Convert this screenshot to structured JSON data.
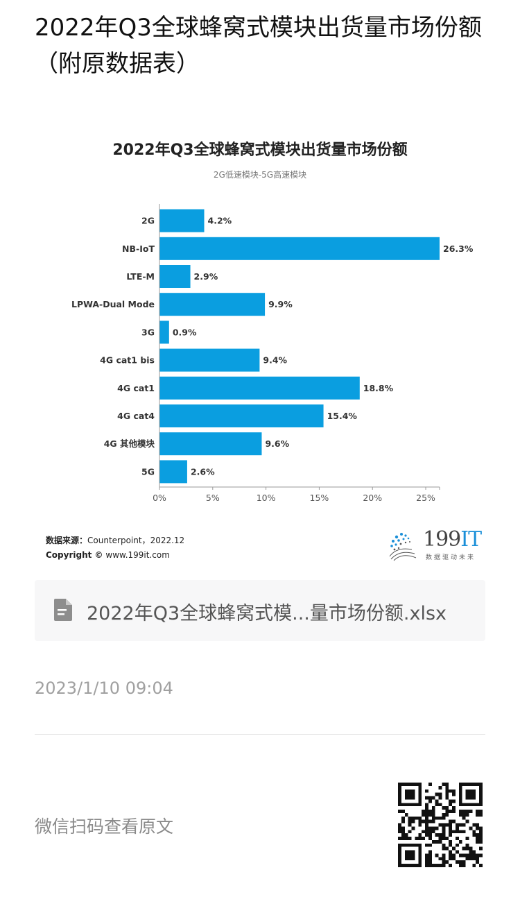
{
  "page": {
    "title": "2022年Q3全球蜂窝式模块出货量市场份额（附原数据表）"
  },
  "chart_data": {
    "type": "bar",
    "orientation": "horizontal",
    "title": "2022年Q3全球蜂窝式模块出货量市场份额",
    "subtitle": "2G低速模块-5G高速模块",
    "categories": [
      "2G",
      "NB-IoT",
      "LTE-M",
      "LPWA-Dual Mode",
      "3G",
      "4G cat1 bis",
      "4G cat1",
      "4G cat4",
      "4G 其他模块",
      "5G"
    ],
    "values": [
      4.2,
      26.3,
      2.9,
      9.9,
      0.9,
      9.4,
      18.8,
      15.4,
      9.6,
      2.6
    ],
    "value_labels": [
      "4.2%",
      "26.3%",
      "2.9%",
      "9.9%",
      "0.9%",
      "9.4%",
      "18.8%",
      "15.4%",
      "9.6%",
      "2.6%"
    ],
    "xticks": [
      0,
      5,
      10,
      15,
      20,
      25
    ],
    "xtick_labels": [
      "0%",
      "5%",
      "10%",
      "15%",
      "20%",
      "25%"
    ],
    "xlim": [
      0,
      26.3
    ],
    "bar_color": "#0a9ee0",
    "grid": false,
    "legend": "none"
  },
  "source": {
    "label": "数据来源：",
    "text": "Counterpoint，2022.12",
    "copyright_label": "Copyright ©",
    "copyright_text": "www.199it.com"
  },
  "logo": {
    "num": "199",
    "it": "IT",
    "slogan": "数据驱动未来"
  },
  "attachment": {
    "icon": "file-icon",
    "name": "2022年Q3全球蜂窝式模...量市场份额.xlsx"
  },
  "timestamp": "2023/1/10 09:04",
  "footer": {
    "scan_text": "微信扫码查看原文",
    "qr_icon": "qr-code-icon"
  }
}
